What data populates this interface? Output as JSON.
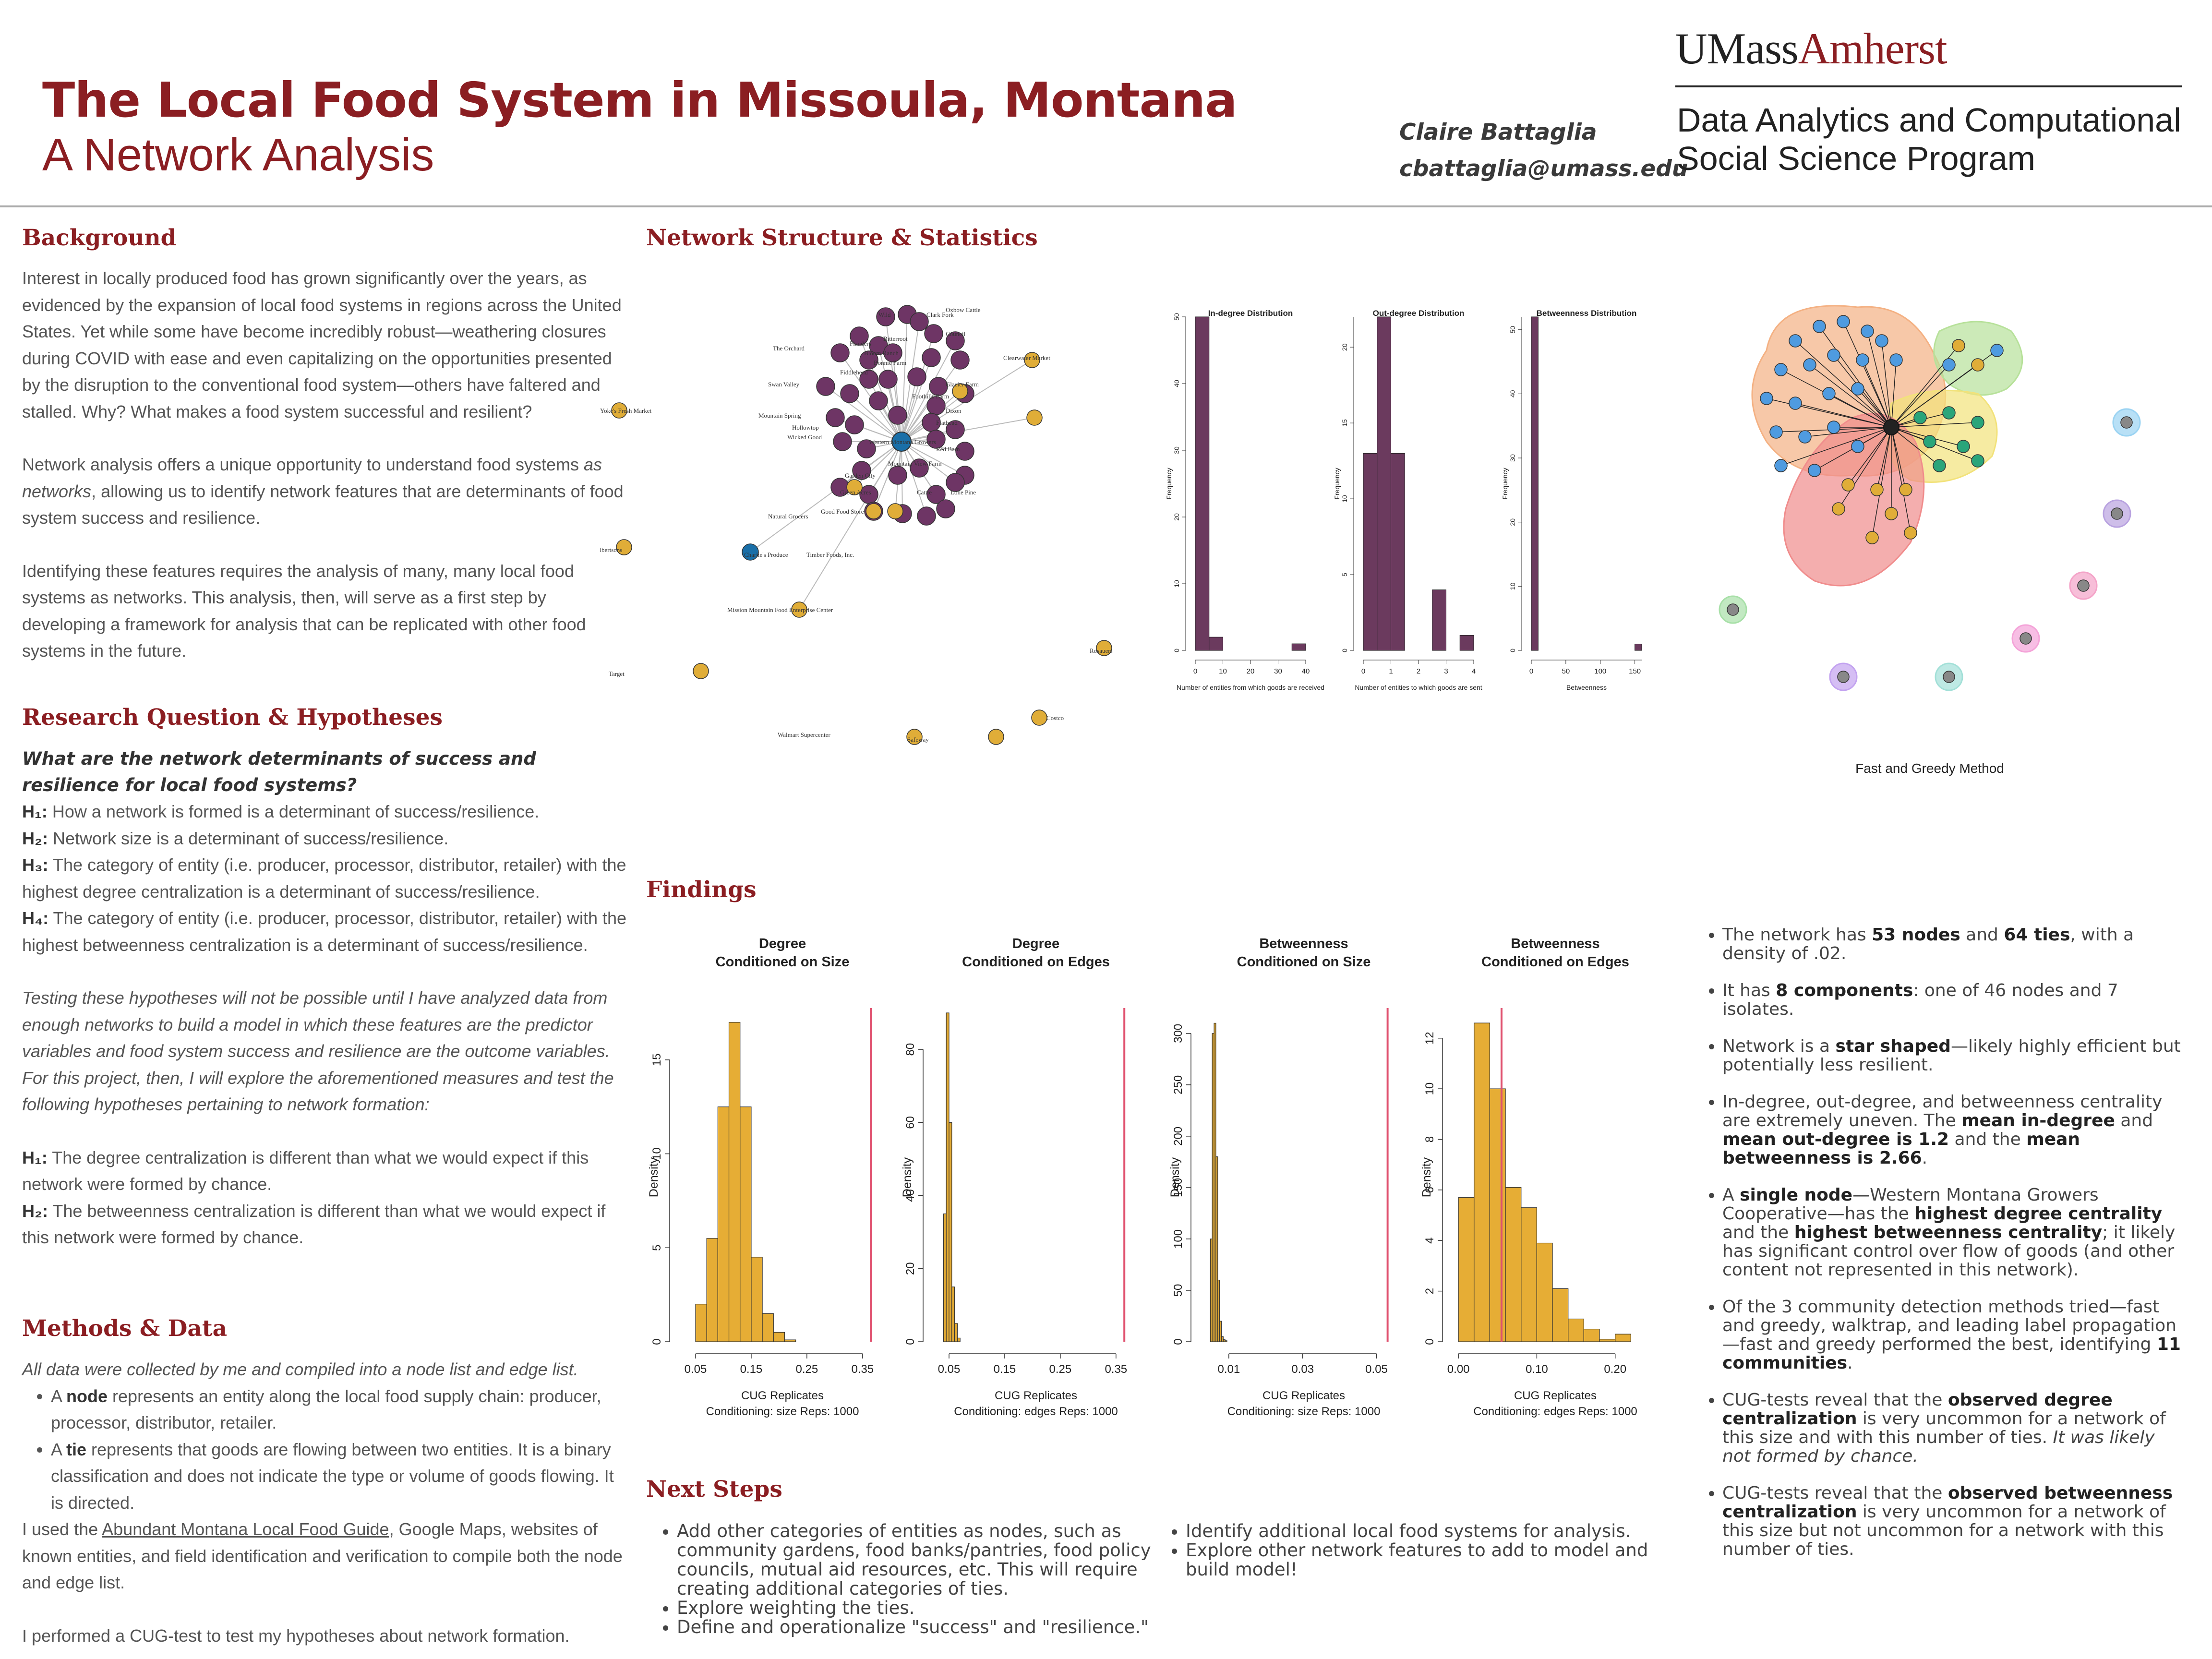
{
  "header": {
    "title": "The Local Food System in Missoula, Montana",
    "subtitle": "A Network Analysis",
    "author": "Claire Battaglia",
    "email": "cbattaglia@umass.edu",
    "logo_um": "UMass",
    "logo_amherst": "Amherst",
    "program_line1": "Data Analytics and Computational",
    "program_line2": "Social Science Program"
  },
  "background": {
    "heading": "Background",
    "p1": "Interest in locally produced food has grown significantly over the years, as evidenced by the expansion of local food systems in regions across the United States. Yet while some have become incredibly robust—weathering closures during COVID with ease and even capitalizing on the opportunities presented by the disruption to the conventional food system—others have faltered and stalled. Why? What makes a food system successful and resilient?",
    "p2a": "Network analysis offers a unique opportunity to understand food systems ",
    "p2b": "as networks",
    "p2c": ", allowing us to identify network features that are determinants of food system success and resilience.",
    "p3": "Identifying these features requires the analysis of many, many local food systems as networks. This analysis, then, will serve as a first step by developing a framework for analysis that can be replicated with other food systems in the future."
  },
  "research": {
    "heading": "Research Question & Hypotheses",
    "question": "What are the network determinants of success and resilience for local food systems?",
    "h1_label": "H₁:",
    "h1": " How a network is formed is a determinant of success/resilience.",
    "h2_label": "H₂:",
    "h2": " Network size is a determinant of success/resilience.",
    "h3_label": "H₃:",
    "h3": " The category of entity (i.e. producer, processor, distributor, retailer) with the highest degree centralization is a determinant of success/resilience.",
    "h4_label": "H₄:",
    "h4": " The category of entity (i.e. producer, processor, distributor, retailer) with the highest betweenness centralization is a determinant of success/resilience.",
    "testing": "Testing these hypotheses will not be possible until I have analyzed data from enough networks to build a model in which these features are the predictor variables and food system success and resilience are the outcome variables. For this project, then, I will explore the aforementioned measures and test the following hypotheses pertaining to network formation:",
    "t1_label": "H₁:",
    "t1": " The degree centralization is different than what we would expect if this network were formed by chance.",
    "t2_label": "H₂:",
    "t2": " The betweenness centralization is different than what we would expect if this network were formed by chance."
  },
  "methods": {
    "heading": "Methods & Data",
    "intro": "All data were collected by me and compiled into a node list and edge list.",
    "b1a": "A ",
    "b1b": "node",
    "b1c": " represents an entity along the local food supply chain: producer, processor, distributor, retailer.",
    "b2a": "A ",
    "b2b": "tie",
    "b2c": " represents that goods are flowing between two entities. It is a binary classification and does not indicate the type or volume of goods flowing. It is directed.",
    "p1a": "I used the ",
    "p1link": "Abundant Montana Local Food Guide",
    "p1b": ", Google Maps, websites of known entities, and field identification and verification to compile both the node and edge list.",
    "p2": "I performed a CUG-test to test my hypotheses about network formation."
  },
  "network": {
    "heading": "Network Structure & Statistics",
    "labels": [
      "Wild",
      "Clark Fork",
      "Bitterroot",
      "Council",
      "Flanders",
      "Oxbow Cattle",
      "The Orchard",
      "Bloom Ranch",
      "Bonnie Farm",
      "Clearwater Market",
      "Fiddlehead",
      "Swan Valley",
      "Foothills Farm",
      "Glacier Farm",
      "Mountain Spring",
      "Hollowtop",
      "Flathead",
      "Wicked Good",
      "Western Montana Growers",
      "Dixon",
      "Yoke's Fresh Market",
      "Red Barn",
      "Mountain View Farm",
      "Garden City",
      "Green Acres",
      "Natural Grocers",
      "Cattle",
      "Lone Pine",
      "Albertsons",
      "Charlie's Produce",
      "Timber Foods, Inc.",
      "Good Food Store",
      "Mission Mountain Food Enterprise Center",
      "Rosauers",
      "Costco",
      "Walmart Supercenter",
      "Safeway",
      "Target"
    ]
  },
  "findings": {
    "heading": "Findings",
    "items": [
      {
        "a": "The network has ",
        "b": "53 nodes",
        "c": " and ",
        "d": "64 ties",
        "e": ", with a density of .02."
      },
      {
        "a": "It has ",
        "b": "8 components",
        "c": ": one of 46 nodes and 7 isolates."
      },
      {
        "a": "Network is a ",
        "b": "star shaped",
        "c": "—likely highly efficient but potentially less resilient."
      },
      {
        "a": "In-degree, out-degree, and betweenness centrality are extremely uneven. The ",
        "b": "mean in-degree",
        "c": " and ",
        "d": "mean out-degree is 1.2",
        "e": " and the ",
        "f": "mean betweenness is 2.66",
        "g": "."
      },
      {
        "a": "A ",
        "b": "single node",
        "c": "—Western Montana Growers Cooperative—has the ",
        "d": "highest degree centrality",
        "e": " and the ",
        "f": "highest betweenness centrality",
        "g": "; it likely has significant control over flow of goods (and other content not represented in this network)."
      },
      {
        "a": "Of the 3 community detection methods tried—fast and greedy, walktrap, and leading label propagation—fast and greedy performed the best, identifying ",
        "b": "11 communities",
        "c": "."
      },
      {
        "a": "CUG-tests reveal that the ",
        "b": "observed degree centralization",
        "c": " is very uncommon for a network of this size and with this number of ties. ",
        "d": "It was likely not formed by chance."
      },
      {
        "a": "CUG-tests reveal that the ",
        "b": "observed betweenness centralization",
        "c": " is very uncommon for a network of this size but not uncommon for a network with this number of ties."
      }
    ]
  },
  "next_steps": {
    "heading": "Next Steps",
    "left": [
      "Add other categories of entities as nodes, such as community gardens, food banks/pantries, food policy councils, mutual aid resources, etc. This will require creating additional categories of ties.",
      "Explore weighting the ties.",
      "Define and operationalize \"success\" and \"resilience.\""
    ],
    "right": [
      "Identify additional local food systems for analysis.",
      "Explore other network features to add to model and build model!"
    ]
  },
  "community": {
    "caption": "Fast and Greedy Method"
  },
  "colors": {
    "maroon": "#8b1e22",
    "bar_purple": "#6b3a5e",
    "bar_gold": "#e6ad35",
    "cug_line": "#e0506e"
  },
  "chart_data": [
    {
      "type": "bar",
      "title": "In-degree Distribution",
      "xlabel": "Number of entities from which goods are received",
      "ylabel": "Frequency",
      "x_ticks": [
        "0",
        "10",
        "20",
        "30",
        "40"
      ],
      "y_ticks": [
        "0",
        "10",
        "20",
        "30",
        "40",
        "50"
      ],
      "xlim": [
        0,
        40
      ],
      "ylim": [
        0,
        50
      ],
      "bins": [
        [
          0,
          5
        ],
        [
          5,
          10
        ],
        [
          10,
          15
        ],
        [
          15,
          20
        ],
        [
          20,
          25
        ],
        [
          25,
          30
        ],
        [
          30,
          35
        ],
        [
          35,
          40
        ]
      ],
      "values": [
        50,
        2,
        0,
        0,
        0,
        0,
        0,
        1
      ]
    },
    {
      "type": "bar",
      "title": "Out-degree Distribution",
      "xlabel": "Number of entities to which goods are sent",
      "ylabel": "Frequency",
      "x_ticks": [
        "0",
        "1",
        "2",
        "3",
        "4"
      ],
      "y_ticks": [
        "0",
        "5",
        "10",
        "15",
        "20"
      ],
      "xlim": [
        0,
        4
      ],
      "ylim": [
        0,
        22
      ],
      "bins": [
        [
          0,
          0.5
        ],
        [
          0.5,
          1
        ],
        [
          1,
          1.5
        ],
        [
          1.5,
          2
        ],
        [
          2,
          2.5
        ],
        [
          2.5,
          3
        ],
        [
          3,
          3.5
        ],
        [
          3.5,
          4
        ]
      ],
      "values": [
        13,
        22,
        13,
        0,
        0,
        4,
        0,
        1
      ]
    },
    {
      "type": "bar",
      "title": "Betweenness Distribution",
      "xlabel": "Betweenness",
      "ylabel": "Frequency",
      "x_ticks": [
        "0",
        "50",
        "100",
        "150"
      ],
      "y_ticks": [
        "0",
        "10",
        "20",
        "30",
        "40",
        "50"
      ],
      "xlim": [
        0,
        160
      ],
      "ylim": [
        0,
        52
      ],
      "bins": [
        [
          0,
          10
        ],
        [
          10,
          20
        ],
        [
          20,
          30
        ],
        [
          30,
          40
        ],
        [
          40,
          50
        ],
        [
          50,
          60
        ],
        [
          60,
          70
        ],
        [
          70,
          80
        ],
        [
          80,
          90
        ],
        [
          90,
          100
        ],
        [
          100,
          110
        ],
        [
          110,
          120
        ],
        [
          120,
          130
        ],
        [
          130,
          140
        ],
        [
          140,
          150
        ],
        [
          150,
          160
        ]
      ],
      "values": [
        52,
        0,
        0,
        0,
        0,
        0,
        0,
        0,
        0,
        0,
        0,
        0,
        0,
        0,
        0,
        1
      ]
    },
    {
      "type": "bar",
      "title": "Degree\nConditioned on Size",
      "xlabel": "CUG Replicates\nConditioning: size Reps: 1000",
      "ylabel": "Density",
      "x_ticks": [
        "0.05",
        "0.15",
        "0.25",
        "0.35"
      ],
      "y_ticks": [
        "0",
        "5",
        "10",
        "15"
      ],
      "xlim": [
        0.025,
        0.37
      ],
      "ylim": [
        0,
        17.5
      ],
      "bin_start": 0.05,
      "bin_width": 0.02,
      "values": [
        2,
        5.5,
        12.5,
        17,
        12.5,
        4.5,
        1.5,
        0.5,
        0.1
      ],
      "observed": 0.365
    },
    {
      "type": "bar",
      "title": "Degree\nConditioned on Edges",
      "xlabel": "CUG Replicates\nConditioning: edges Reps: 1000",
      "ylabel": "Density",
      "x_ticks": [
        "0.05",
        "0.15",
        "0.25",
        "0.35"
      ],
      "y_ticks": [
        "0",
        "20",
        "40",
        "60",
        "80"
      ],
      "xlim": [
        0.025,
        0.37
      ],
      "ylim": [
        0,
        90
      ],
      "bin_start": 0.04,
      "bin_width": 0.005,
      "values": [
        35,
        90,
        60,
        15,
        5,
        1
      ],
      "observed": 0.365
    },
    {
      "type": "bar",
      "title": "Betweenness\nConditioned on Size",
      "xlabel": "CUG Replicates\nConditioning: size Reps: 1000",
      "ylabel": "Density",
      "x_ticks": [
        "0.01",
        "0.03",
        "0.05"
      ],
      "y_ticks": [
        "0",
        "50",
        "100",
        "150",
        "200",
        "250",
        "300"
      ],
      "xlim": [
        0.003,
        0.055
      ],
      "ylim": [
        0,
        320
      ],
      "bin_start": 0.005,
      "bin_width": 0.0005,
      "values": [
        100,
        300,
        310,
        180,
        60,
        20,
        5,
        2,
        1
      ],
      "observed": 0.053
    },
    {
      "type": "bar",
      "title": "Betweenness\nConditioned on Edges",
      "xlabel": "CUG Replicates\nConditioning: edges Reps: 1000",
      "ylabel": "Density",
      "x_ticks": [
        "0.00",
        "0.10",
        "0.20"
      ],
      "y_ticks": [
        "0",
        "2",
        "4",
        "6",
        "8",
        "10",
        "12"
      ],
      "xlim": [
        -0.005,
        0.24
      ],
      "ylim": [
        0,
        13
      ],
      "bin_start": 0.0,
      "bin_width": 0.02,
      "values": [
        5.7,
        12.6,
        10,
        6.1,
        5.3,
        3.9,
        2.1,
        0.9,
        0.5,
        0.1,
        0.3
      ],
      "observed": 0.055
    }
  ]
}
